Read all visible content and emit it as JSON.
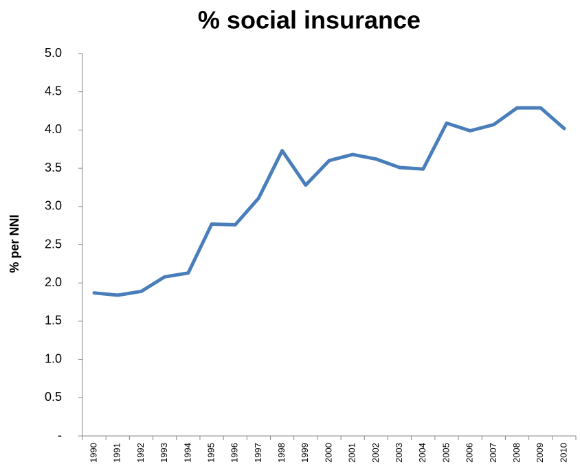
{
  "chart_data": {
    "type": "line",
    "title": "% social insurance",
    "y_label": "% per NNI",
    "categories": [
      "1990",
      "1991",
      "1992",
      "1993",
      "1994",
      "1995",
      "1996",
      "1997",
      "1998",
      "1999",
      "2000",
      "2001",
      "2002",
      "2003",
      "2004",
      "2005",
      "2006",
      "2007",
      "2008",
      "2009",
      "2010"
    ],
    "values": [
      1.87,
      1.84,
      1.89,
      2.08,
      2.13,
      2.77,
      2.76,
      3.11,
      3.73,
      3.28,
      3.6,
      3.68,
      3.62,
      3.51,
      3.49,
      4.09,
      3.99,
      4.07,
      4.29,
      4.29,
      4.02
    ],
    "color": "#4a7ebb",
    "ylim": [
      0,
      5
    ],
    "yticks": [
      {
        "value": 0,
        "label": "-"
      },
      0.5,
      {
        "value": 1,
        "label": "1.0"
      },
      1.5,
      {
        "value": 2,
        "label": "2.0"
      },
      2.5,
      {
        "value": 3,
        "label": "3.0"
      },
      3.5,
      {
        "value": 4,
        "label": "4.0"
      },
      4.5,
      {
        "value": 5,
        "label": "5.0"
      }
    ],
    "grid": false
  }
}
